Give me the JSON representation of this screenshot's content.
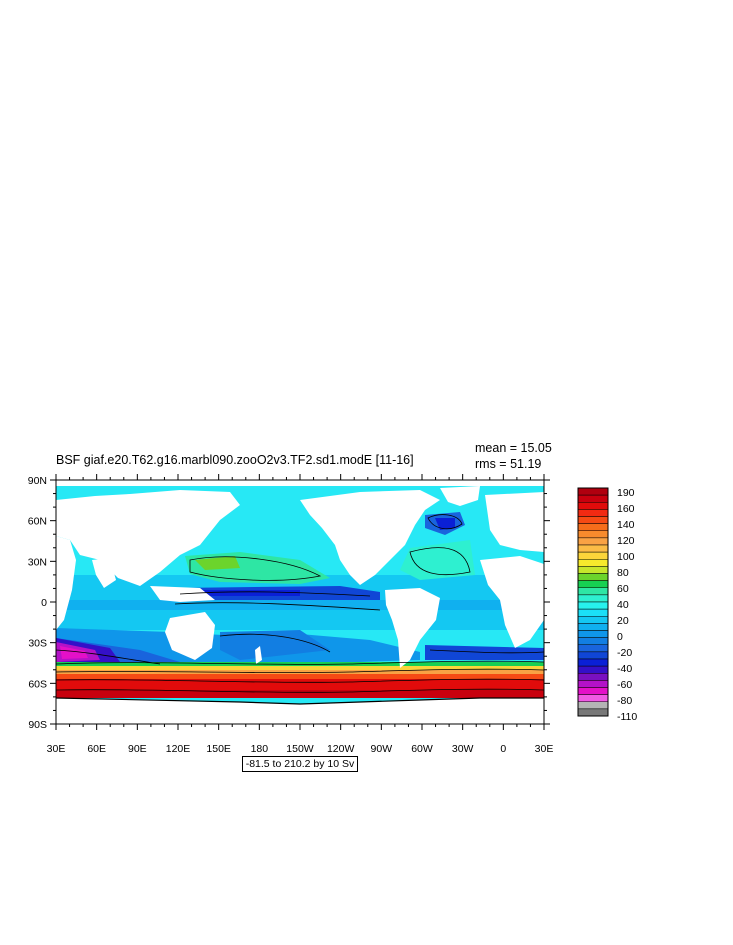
{
  "title": "BSF giaf.e20.T62.g16.marbl090.zooO2v3.TF2.sd1.modE [11-16]",
  "mean_text": "mean = 15.05",
  "rms_text": "rms = 51.19",
  "range_text": "-81.5 to 210.2 by 10 Sv",
  "lat_labels": [
    "90N",
    "60N",
    "30N",
    "0",
    "30S",
    "60S",
    "90S"
  ],
  "lon_labels": [
    "30E",
    "60E",
    "90E",
    "120E",
    "150E",
    "180",
    "150W",
    "120W",
    "90W",
    "60W",
    "30W",
    "0",
    "30E"
  ],
  "colorbar": {
    "labels": [
      "190",
      "160",
      "140",
      "120",
      "100",
      "80",
      "60",
      "40",
      "20",
      "0",
      "-20",
      "-40",
      "-60",
      "-80",
      "-110"
    ],
    "colors": [
      "#b0000f",
      "#c8000e",
      "#e10b0b",
      "#f22a12",
      "#f64a14",
      "#f66d1b",
      "#f78b2d",
      "#f9a244",
      "#fbbc46",
      "#fbd53a",
      "#f7ea2c",
      "#c7e62c",
      "#6cd42c",
      "#17d052",
      "#2ee6a4",
      "#2ef0d0",
      "#27f2ee",
      "#1be0f7",
      "#14c8f2",
      "#10b0ef",
      "#0f96ea",
      "#127ee2",
      "#1964dd",
      "#1046d6",
      "#0a20d6",
      "#3410c8",
      "#7a10c0",
      "#b412c8",
      "#e410c8",
      "#f05ae4",
      "#b4b4b4",
      "#787878"
    ]
  },
  "legend_colors": {
    "land": "#ffffff",
    "ocean_base": "#27e8f5"
  }
}
